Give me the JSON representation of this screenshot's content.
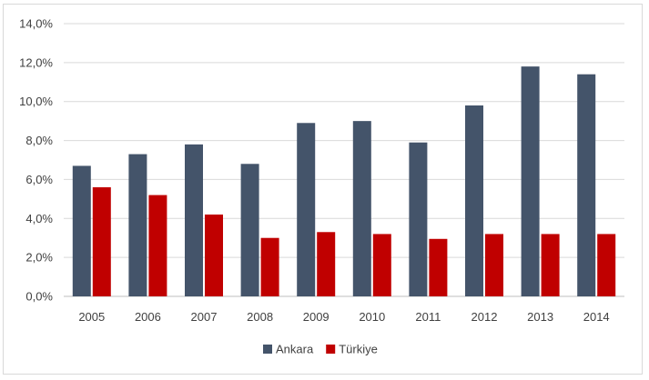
{
  "chart_data": {
    "type": "bar",
    "title": "",
    "xlabel": "",
    "ylabel": "",
    "categories": [
      "2005",
      "2006",
      "2007",
      "2008",
      "2009",
      "2010",
      "2011",
      "2012",
      "2013",
      "2014"
    ],
    "series": [
      {
        "name": "Ankara",
        "color": "#44546a",
        "values": [
          6.7,
          7.3,
          7.8,
          6.8,
          8.9,
          9.0,
          7.9,
          9.8,
          11.8,
          11.4
        ]
      },
      {
        "name": "Türkiye",
        "color": "#c00000",
        "values": [
          5.6,
          5.2,
          4.2,
          3.0,
          3.3,
          3.2,
          2.95,
          3.2,
          3.2,
          3.2
        ]
      }
    ],
    "ylim": [
      0,
      14
    ],
    "yticks": [
      0,
      2,
      4,
      6,
      8,
      10,
      12,
      14
    ],
    "ytick_labels": [
      "0,0%",
      "2,0%",
      "4,0%",
      "6,0%",
      "8,0%",
      "10,0%",
      "12,0%",
      "14,0%"
    ],
    "grid": true,
    "legend_position": "bottom"
  }
}
